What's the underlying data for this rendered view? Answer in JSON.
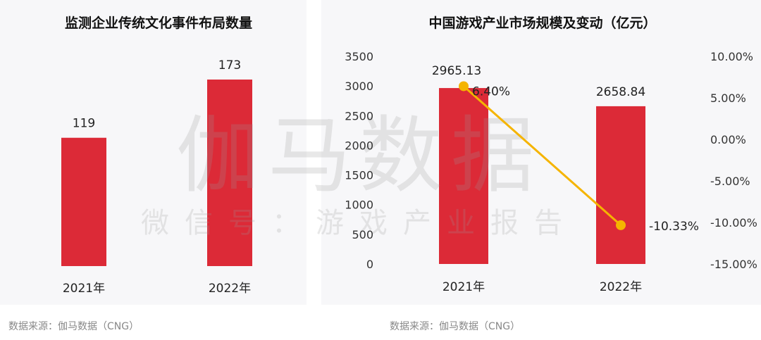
{
  "chart_data": [
    {
      "type": "bar",
      "title": "监测企业传统文化事件布局数量",
      "categories": [
        "2021年",
        "2022年"
      ],
      "values": [
        119,
        173
      ],
      "data_labels": [
        "119",
        "173"
      ],
      "ylim": [
        0,
        180
      ],
      "grid": false,
      "bar_color": "#dc2a37"
    },
    {
      "type": "bar+line",
      "title": "中国游戏产业市场规模及变动（亿元）",
      "categories": [
        "2021年",
        "2022年"
      ],
      "bar_values": [
        2965.13,
        2658.84
      ],
      "bar_labels": [
        "2965.13",
        "2658.84"
      ],
      "line_values": [
        6.4,
        -10.33
      ],
      "line_labels": [
        "6.40%",
        "-10.33%"
      ],
      "y_left": {
        "range": [
          0,
          3500
        ],
        "ticks": [
          "0",
          "500",
          "1000",
          "1500",
          "2000",
          "2500",
          "3000",
          "3500"
        ]
      },
      "y_right": {
        "range": [
          -15,
          10
        ],
        "ticks": [
          "-15.00%",
          "-10.00%",
          "-5.00%",
          "0.00%",
          "5.00%",
          "10.00%"
        ]
      },
      "grid": false,
      "bar_color": "#dc2a37",
      "line_color": "#f5b400"
    }
  ],
  "watermark": {
    "main": "伽马数据",
    "sub": "微信号：游戏产业报告"
  },
  "sources": [
    "数据来源：伽马数据（CNG）",
    "数据来源：伽马数据（CNG）"
  ]
}
